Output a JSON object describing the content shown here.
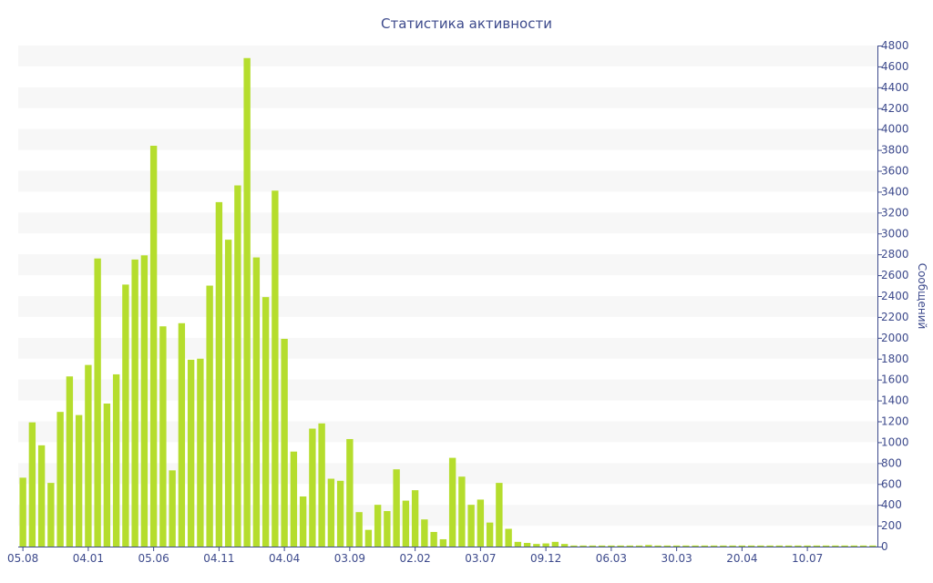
{
  "chart_data": {
    "type": "bar",
    "title": "Статистика активности",
    "ylabel": "Сообщений",
    "xlabel": "",
    "ylim": [
      0,
      4800
    ],
    "y_ticks": [
      0,
      200,
      400,
      600,
      800,
      1000,
      1200,
      1400,
      1600,
      1800,
      2000,
      2200,
      2400,
      2600,
      2800,
      3000,
      3200,
      3400,
      3600,
      3800,
      4000,
      4200,
      4400,
      4600,
      4800
    ],
    "y_axis_side": "right",
    "grid": "horizontal alternating bands",
    "x_tick_labels": [
      {
        "label": "05.08",
        "index": 0
      },
      {
        "label": "04.01",
        "index": 7
      },
      {
        "label": "05.06",
        "index": 14
      },
      {
        "label": "04.11",
        "index": 21
      },
      {
        "label": "04.04",
        "index": 28
      },
      {
        "label": "03.09",
        "index": 35
      },
      {
        "label": "02.02",
        "index": 42
      },
      {
        "label": "03.07",
        "index": 49
      },
      {
        "label": "09.12",
        "index": 56
      },
      {
        "label": "06.03",
        "index": 63
      },
      {
        "label": "30.03",
        "index": 70
      },
      {
        "label": "20.04",
        "index": 77
      },
      {
        "label": "10.07",
        "index": 84
      }
    ],
    "values": [
      660,
      1190,
      970,
      610,
      1290,
      1630,
      1260,
      1740,
      2760,
      1370,
      1650,
      2510,
      2750,
      2790,
      3840,
      2110,
      730,
      2140,
      1790,
      1800,
      2500,
      3300,
      2940,
      3460,
      4680,
      2770,
      2390,
      3410,
      1990,
      910,
      480,
      1130,
      1180,
      650,
      630,
      1030,
      330,
      160,
      400,
      340,
      740,
      440,
      540,
      260,
      140,
      70,
      850,
      670,
      400,
      450,
      230,
      610,
      170,
      45,
      35,
      25,
      30,
      45,
      25,
      10,
      10,
      10,
      10,
      10,
      10,
      10,
      10,
      15,
      10,
      10,
      10,
      10,
      10,
      10,
      10,
      10,
      10,
      10,
      10,
      10,
      10,
      10,
      10,
      10,
      10,
      10,
      10,
      10,
      10,
      10,
      10,
      10
    ],
    "colors": {
      "bar": "#b5dd2d",
      "band": "#f7f7f7",
      "text": "#3d4a8c",
      "axis": "#3d4a8c"
    }
  }
}
